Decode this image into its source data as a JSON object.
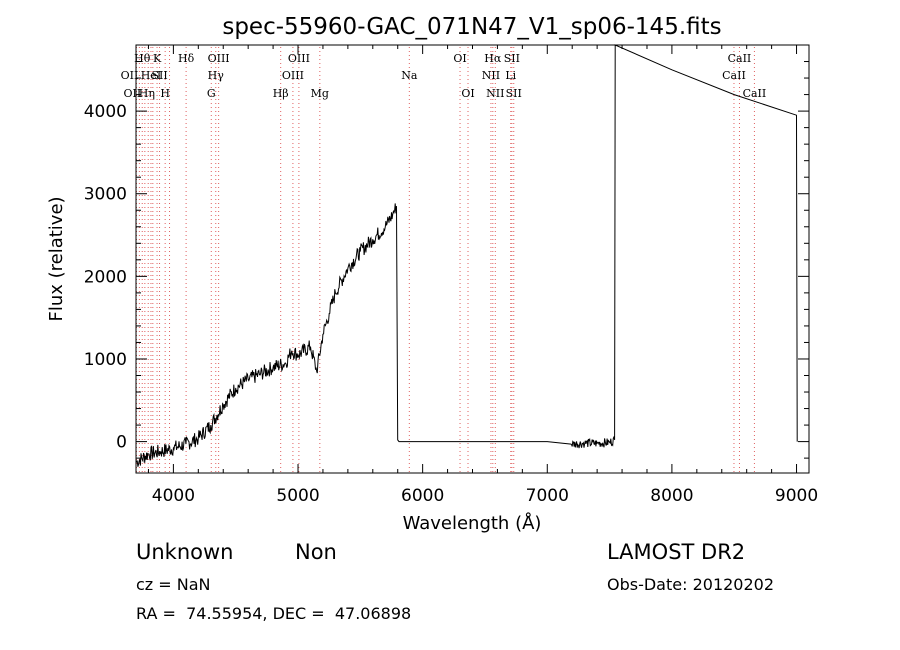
{
  "chart_data": {
    "type": "line",
    "title": "spec-55960-GAC_071N47_V1_sp06-145.fits",
    "xlabel": "Wavelength (Å)",
    "ylabel": "Flux (relative)",
    "xlim": [
      3700,
      9100
    ],
    "ylim": [
      -380,
      4800
    ],
    "x_ticks": [
      4000,
      5000,
      6000,
      7000,
      8000,
      9000
    ],
    "y_ticks": [
      0,
      1000,
      2000,
      3000,
      4000
    ],
    "grid": false,
    "series": [
      {
        "x": [
          3700,
          3800,
          3900,
          4000,
          4100,
          4200,
          4300,
          4400,
          4500,
          4600,
          4700,
          4800,
          4900,
          4950,
          5000,
          5100,
          5150,
          5200,
          5250,
          5300,
          5400,
          5500,
          5600,
          5700,
          5760,
          5790,
          5800,
          5810,
          6000,
          7000,
          7190,
          7300,
          7400,
          7500,
          7540,
          7545,
          8000,
          8500,
          9000,
          9005
        ],
        "y": [
          -250,
          -150,
          -120,
          -80,
          -30,
          40,
          200,
          450,
          650,
          750,
          820,
          900,
          950,
          1100,
          1050,
          1150,
          850,
          1300,
          1550,
          1800,
          2100,
          2300,
          2450,
          2600,
          2750,
          2850,
          20,
          0,
          0,
          0,
          -30,
          -20,
          -20,
          -10,
          20,
          4800,
          4500,
          4200,
          3950,
          0
        ]
      }
    ],
    "lines": [
      {
        "wl": 3704,
        "label": "OII",
        "row": 1,
        "dx": -7
      },
      {
        "wl": 3727,
        "label": "OII",
        "row": 2,
        "dx": -7
      },
      {
        "wl": 3750,
        "label": "Hθ",
        "row": 0,
        "dx": 0
      },
      {
        "wl": 3771,
        "label": "Hη",
        "row": 2,
        "dx": 2
      },
      {
        "wl": 3798,
        "label": "",
        "row": -1,
        "dx": 0
      },
      {
        "wl": 3820,
        "label": "HeI",
        "row": 1,
        "dx": 0
      },
      {
        "wl": 3835,
        "label": "",
        "row": -1,
        "dx": 0
      },
      {
        "wl": 3869,
        "label": "K",
        "row": 0,
        "dx": 0
      },
      {
        "wl": 3889,
        "label": "SII",
        "row": 1,
        "dx": 0
      },
      {
        "wl": 3934,
        "label": "H",
        "row": 2,
        "dx": 0
      },
      {
        "wl": 3969,
        "label": "",
        "row": -1,
        "dx": 0
      },
      {
        "wl": 4102,
        "label": "Hδ",
        "row": 0,
        "dx": 0
      },
      {
        "wl": 4304,
        "label": "G",
        "row": 2,
        "dx": 0
      },
      {
        "wl": 4340,
        "label": "Hγ",
        "row": 1,
        "dx": 0
      },
      {
        "wl": 4363,
        "label": "OIII",
        "row": 0,
        "dx": 0
      },
      {
        "wl": 4861,
        "label": "Hβ",
        "row": 2,
        "dx": 0
      },
      {
        "wl": 4959,
        "label": "OIII",
        "row": 1,
        "dx": 0
      },
      {
        "wl": 5007,
        "label": "OIII",
        "row": 0,
        "dx": 0
      },
      {
        "wl": 5175,
        "label": "Mg",
        "row": 2,
        "dx": 0
      },
      {
        "wl": 5893,
        "label": "Na",
        "row": 1,
        "dx": 0
      },
      {
        "wl": 6300,
        "label": "OI",
        "row": 0,
        "dx": 0
      },
      {
        "wl": 6364,
        "label": "OI",
        "row": 2,
        "dx": 0
      },
      {
        "wl": 6548,
        "label": "NII",
        "row": 1,
        "dx": 0
      },
      {
        "wl": 6563,
        "label": "Hα",
        "row": 0,
        "dx": 0
      },
      {
        "wl": 6583,
        "label": "NII",
        "row": 2,
        "dx": 0
      },
      {
        "wl": 6707,
        "label": "Li",
        "row": 1,
        "dx": 0
      },
      {
        "wl": 6716,
        "label": "SII",
        "row": 0,
        "dx": 0
      },
      {
        "wl": 6731,
        "label": "SII",
        "row": 2,
        "dx": 0
      },
      {
        "wl": 8498,
        "label": "CaII",
        "row": 1,
        "dx": 0
      },
      {
        "wl": 8542,
        "label": "CaII",
        "row": 0,
        "dx": 0
      },
      {
        "wl": 8662,
        "label": "CaII",
        "row": 2,
        "dx": 0
      }
    ]
  },
  "info": {
    "class_label": "Unknown",
    "subclass_label": "Non",
    "cz_text": "cz = NaN",
    "radec_text": "RA =  74.55954, DEC =  47.06898",
    "survey": "LAMOST DR2",
    "obs_date": "Obs-Date: 20120202"
  }
}
